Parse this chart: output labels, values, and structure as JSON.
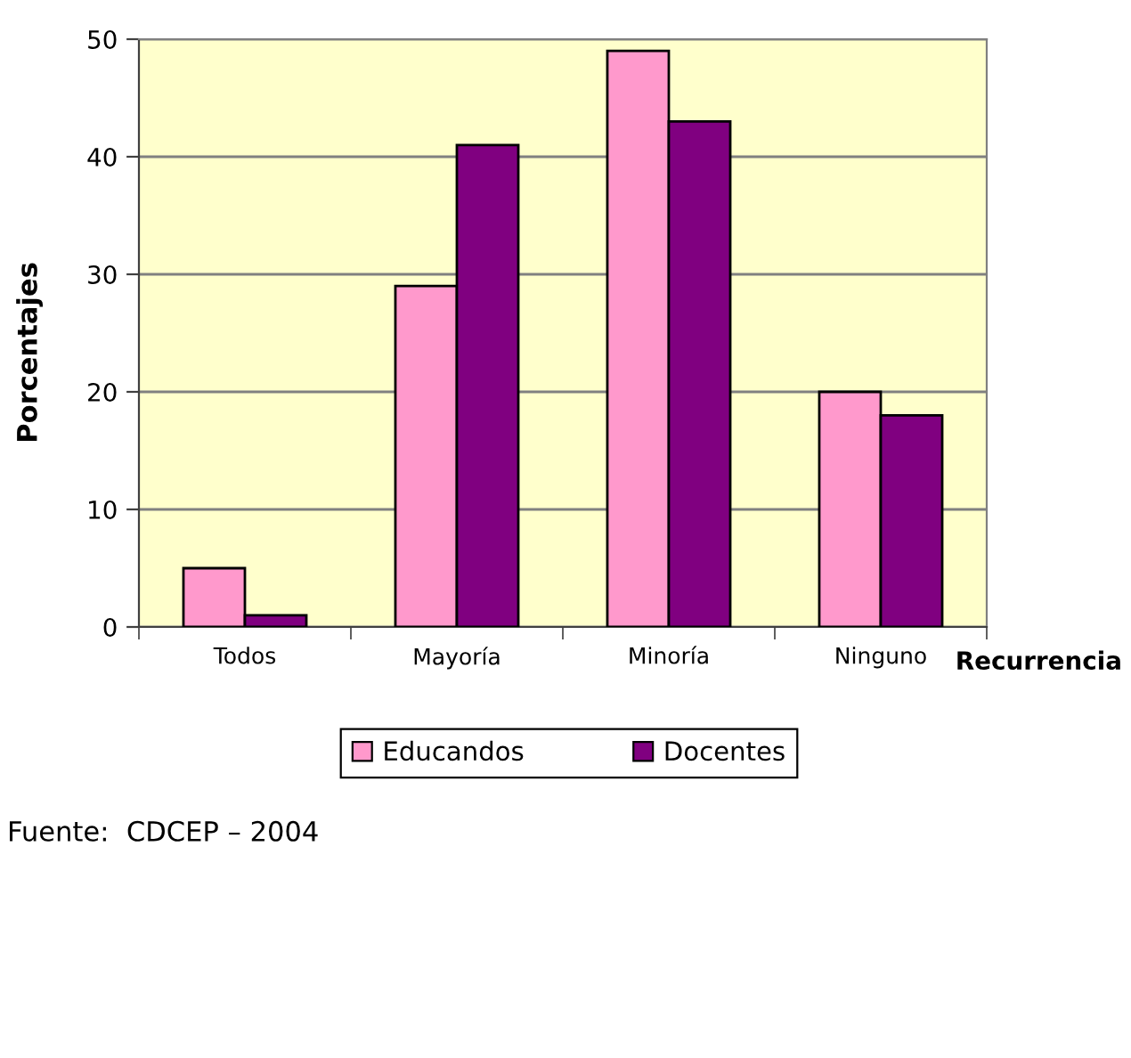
{
  "chart_data": {
    "type": "bar",
    "xlabel": "Recurrencia",
    "ylabel": "Porcentajes",
    "categories": [
      "Todos",
      "Mayoría",
      "Minoría",
      "Ninguno"
    ],
    "series": [
      {
        "name": "Educandos",
        "color": "#ff99cc",
        "values": [
          5,
          29,
          49,
          20
        ]
      },
      {
        "name": "Docentes",
        "color": "#800080",
        "values": [
          1,
          41,
          43,
          18
        ]
      }
    ],
    "ylim": [
      0,
      50
    ],
    "yticks": [
      0,
      10,
      20,
      30,
      40,
      50
    ],
    "grid": "y",
    "legend": "bottom",
    "annotations": [
      "Fuente:  CDCEP – 2004"
    ]
  }
}
